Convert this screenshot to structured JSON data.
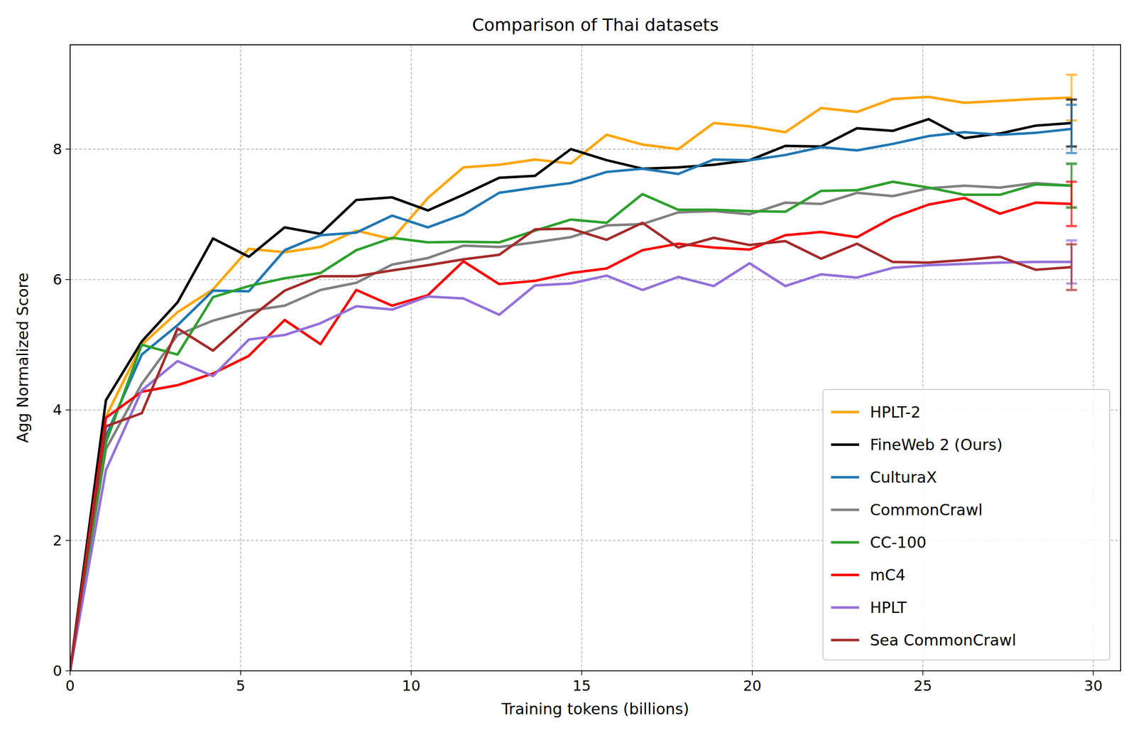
{
  "chart_data": {
    "type": "line",
    "title": "Comparison of Thai datasets",
    "x_label": "Training tokens (billions)",
    "y_label": "Agg Normalized Score",
    "x": [
      0,
      1.05,
      2.1,
      3.15,
      4.19,
      5.24,
      6.29,
      7.34,
      8.39,
      9.44,
      10.49,
      11.53,
      12.58,
      13.63,
      14.68,
      15.73,
      16.78,
      17.83,
      18.87,
      19.92,
      20.97,
      22.02,
      23.07,
      24.12,
      25.17,
      26.22,
      27.26,
      28.31,
      29.36
    ],
    "xlim": [
      0,
      30.8
    ],
    "ylim": [
      0,
      9.6
    ],
    "xticks": [
      0,
      5,
      10,
      15,
      20,
      25,
      30
    ],
    "yticks": [
      0,
      2,
      4,
      6,
      8
    ],
    "grid": true,
    "legend": "lower right",
    "series": [
      {
        "name": "HPLT-2",
        "color": "#ffa500",
        "error": 0.35,
        "values": [
          0,
          3.9,
          5.0,
          5.5,
          5.85,
          6.47,
          6.42,
          6.5,
          6.75,
          6.62,
          7.25,
          7.72,
          7.76,
          7.84,
          7.78,
          8.22,
          8.07,
          8.0,
          8.4,
          8.35,
          8.26,
          8.63,
          8.57,
          8.77,
          8.8,
          8.71,
          8.74,
          8.77,
          8.79
        ]
      },
      {
        "name": "FineWeb 2 (Ours)",
        "color": "#000000",
        "error": 0.36,
        "values": [
          0,
          4.15,
          5.05,
          5.65,
          6.63,
          6.35,
          6.8,
          6.7,
          7.22,
          7.26,
          7.06,
          7.3,
          7.56,
          7.59,
          8.0,
          7.83,
          7.7,
          7.72,
          7.76,
          7.83,
          8.05,
          8.04,
          8.32,
          8.28,
          8.46,
          8.17,
          8.24,
          8.36,
          8.4
        ]
      },
      {
        "name": "CulturaX",
        "color": "#1f77b4",
        "error": 0.37,
        "values": [
          0,
          3.6,
          4.85,
          5.3,
          5.83,
          5.82,
          6.45,
          6.68,
          6.72,
          6.98,
          6.8,
          7.0,
          7.33,
          7.41,
          7.48,
          7.65,
          7.7,
          7.62,
          7.84,
          7.83,
          7.91,
          8.03,
          7.98,
          8.08,
          8.2,
          8.26,
          8.22,
          8.25,
          8.31
        ]
      },
      {
        "name": "CommonCrawl",
        "color": "#808080",
        "error": 0.33,
        "values": [
          0,
          3.4,
          4.4,
          5.15,
          5.37,
          5.52,
          5.6,
          5.84,
          5.95,
          6.23,
          6.33,
          6.52,
          6.5,
          6.57,
          6.65,
          6.83,
          6.85,
          7.03,
          7.05,
          7.0,
          7.18,
          7.16,
          7.33,
          7.28,
          7.4,
          7.44,
          7.41,
          7.48,
          7.44
        ]
      },
      {
        "name": "CC-100",
        "color": "#2ca02c",
        "error": 0.34,
        "values": [
          0,
          3.5,
          5.0,
          4.85,
          5.73,
          5.9,
          6.02,
          6.1,
          6.45,
          6.64,
          6.57,
          6.58,
          6.57,
          6.75,
          6.92,
          6.87,
          7.31,
          7.07,
          7.07,
          7.05,
          7.04,
          7.36,
          7.37,
          7.5,
          7.41,
          7.3,
          7.3,
          7.46,
          7.44
        ]
      },
      {
        "name": "mC4",
        "color": "#ff0000",
        "error": 0.34,
        "values": [
          0,
          3.88,
          4.28,
          4.38,
          4.56,
          4.83,
          5.38,
          5.01,
          5.84,
          5.6,
          5.76,
          6.28,
          5.93,
          5.98,
          6.1,
          6.17,
          6.45,
          6.55,
          6.49,
          6.46,
          6.68,
          6.73,
          6.65,
          6.95,
          7.15,
          7.25,
          7.01,
          7.18,
          7.16
        ]
      },
      {
        "name": "HPLT",
        "color": "#9370db",
        "error": 0.33,
        "values": [
          0,
          3.08,
          4.3,
          4.75,
          4.52,
          5.08,
          5.15,
          5.33,
          5.59,
          5.54,
          5.74,
          5.71,
          5.46,
          5.91,
          5.94,
          6.06,
          5.84,
          6.04,
          5.9,
          6.25,
          5.9,
          6.08,
          6.03,
          6.18,
          6.22,
          6.24,
          6.26,
          6.27,
          6.27
        ]
      },
      {
        "name": "Sea CommonCrawl",
        "color": "#a52a2a",
        "error": 0.35,
        "values": [
          0,
          3.75,
          3.95,
          5.25,
          4.91,
          5.4,
          5.83,
          6.05,
          6.05,
          6.14,
          6.22,
          6.31,
          6.38,
          6.77,
          6.78,
          6.61,
          6.87,
          6.49,
          6.64,
          6.53,
          6.59,
          6.32,
          6.55,
          6.27,
          6.26,
          6.3,
          6.35,
          6.15,
          6.19
        ]
      }
    ]
  }
}
